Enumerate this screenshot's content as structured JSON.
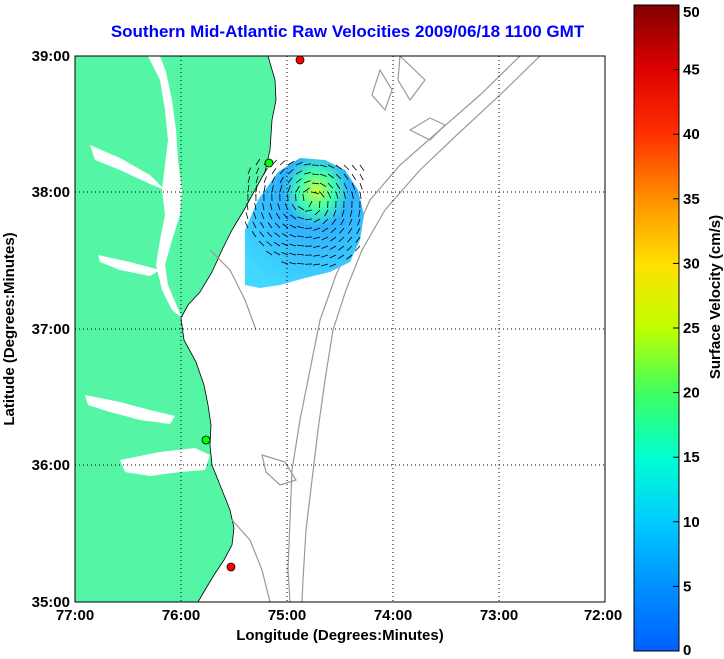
{
  "title": "Southern Mid-Atlantic Raw Velocities 2009/06/18 1100 GMT",
  "map": {
    "xlabel": "Longitude (Degrees:Minutes)",
    "ylabel": "Latitude (Degrees:Minutes)",
    "lon_ticks": [
      "77:00",
      "76:00",
      "75:00",
      "74:00",
      "73:00",
      "72:00"
    ],
    "lat_ticks": [
      "39:00",
      "38:00",
      "37:00",
      "36:00",
      "35:00"
    ],
    "lon_range": [
      -77,
      -72
    ],
    "lat_range": [
      35,
      39
    ],
    "land_color": "#55f5a6",
    "coast_color": "#000000",
    "bathymetry_color": "#999999",
    "station_colors": [
      "#00ff00",
      "#ff0000"
    ]
  },
  "colorbar": {
    "label": "Surface Velocity (cm/s)",
    "ticks": [
      "0",
      "5",
      "10",
      "15",
      "20",
      "25",
      "30",
      "35",
      "40",
      "45",
      "50"
    ],
    "range": [
      0,
      50
    ],
    "colors": [
      "#0050ff",
      "#00c8ff",
      "#00ffd0",
      "#80ff00",
      "#ffff00",
      "#ff9000",
      "#ff0000",
      "#8b0000"
    ]
  }
}
